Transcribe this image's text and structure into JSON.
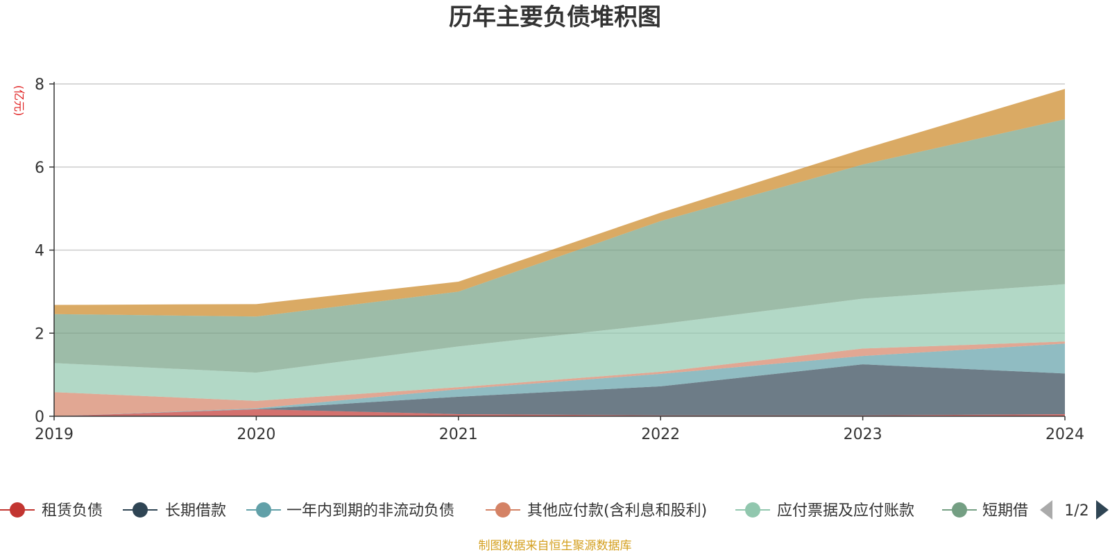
{
  "chart_data": {
    "type": "area",
    "title": "历年主要负债堆积图",
    "unit_label": "(亿元)",
    "x": [
      "2019",
      "2020",
      "2021",
      "2022",
      "2023",
      "2024"
    ],
    "y_ticks": [
      "0",
      "2",
      "4",
      "6",
      "8"
    ],
    "ylim": [
      0,
      8
    ],
    "stacked": true,
    "grid": true,
    "series": [
      {
        "name": "租赁负债",
        "color": "#c23531",
        "values": [
          0.0,
          0.17,
          0.05,
          0.02,
          0.02,
          0.05
        ]
      },
      {
        "name": "长期借款",
        "color": "#2f4554",
        "values": [
          0.0,
          0.0,
          0.42,
          0.7,
          1.23,
          0.98
        ]
      },
      {
        "name": "一年内到期的非流动负债",
        "color": "#61a0a8",
        "values": [
          0.0,
          0.02,
          0.18,
          0.3,
          0.2,
          0.72
        ]
      },
      {
        "name": "其他应付款(含利息和股利)",
        "color": "#d48265",
        "values": [
          0.58,
          0.18,
          0.05,
          0.05,
          0.18,
          0.05
        ]
      },
      {
        "name": "应付票据及应付账款",
        "color": "#91c7ae",
        "values": [
          0.7,
          0.68,
          0.98,
          1.15,
          1.2,
          1.38
        ]
      },
      {
        "name": "短期借款",
        "color": "#749f83",
        "values": [
          1.18,
          1.35,
          1.32,
          2.48,
          3.23,
          3.97
        ]
      },
      {
        "name": "",
        "color": "#ca8622",
        "values": [
          0.22,
          0.3,
          0.24,
          0.2,
          0.37,
          0.73
        ]
      }
    ],
    "legend": {
      "position": "bottom",
      "visible_items": [
        "租赁负债",
        "长期借款",
        "一年内到期的非流动负债",
        "其他应付款(含利息和股利)",
        "应付票据及应付账款",
        "短期借"
      ],
      "page_indicator": "1/2"
    },
    "source_note": "制图数据来自恒生聚源数据库"
  }
}
